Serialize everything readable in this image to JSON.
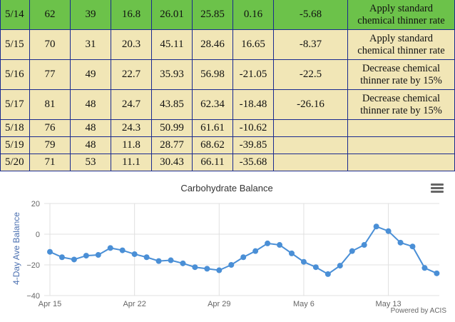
{
  "table": {
    "rows": [
      {
        "date": "5/14",
        "v1": "62",
        "v2": "39",
        "v3": "16.8",
        "v4": "26.01",
        "v5": "25.85",
        "v6": "0.16",
        "v7": "-5.68",
        "rec": [
          "Apply standard",
          "chemical thinner rate"
        ],
        "highlight": true
      },
      {
        "date": "5/15",
        "v1": "70",
        "v2": "31",
        "v3": "20.3",
        "v4": "45.11",
        "v5": "28.46",
        "v6": "16.65",
        "v7": "-8.37",
        "rec": [
          "Apply standard",
          "chemical thinner rate"
        ],
        "highlight": false
      },
      {
        "date": "5/16",
        "v1": "77",
        "v2": "49",
        "v3": "22.7",
        "v4": "35.93",
        "v5": "56.98",
        "v6": "-21.05",
        "v7": "-22.5",
        "rec": [
          "Decrease chemical",
          "thinner rate by 15%"
        ],
        "highlight": false
      },
      {
        "date": "5/17",
        "v1": "81",
        "v2": "48",
        "v3": "24.7",
        "v4": "43.85",
        "v5": "62.34",
        "v6": "-18.48",
        "v7": "-26.16",
        "rec": [
          "Decrease chemical",
          "thinner rate by 15%"
        ],
        "highlight": false
      },
      {
        "date": "5/18",
        "v1": "76",
        "v2": "48",
        "v3": "24.3",
        "v4": "50.99",
        "v5": "61.61",
        "v6": "-10.62",
        "v7": "",
        "rec": [],
        "highlight": false
      },
      {
        "date": "5/19",
        "v1": "79",
        "v2": "48",
        "v3": "11.8",
        "v4": "28.77",
        "v5": "68.62",
        "v6": "-39.85",
        "v7": "",
        "rec": [],
        "highlight": false
      },
      {
        "date": "5/20",
        "v1": "71",
        "v2": "53",
        "v3": "11.1",
        "v4": "30.43",
        "v5": "66.11",
        "v6": "-35.68",
        "v7": "",
        "rec": [],
        "highlight": false
      }
    ]
  },
  "chart_data": {
    "type": "line",
    "title": "Carbohydrate Balance",
    "ylabel": "4-Day Ave Balance",
    "xlabel": "",
    "x_ticks": [
      "Apr 15",
      "Apr 22",
      "Apr 29",
      "May 6",
      "May 13"
    ],
    "y_ticks": [
      "20",
      "0",
      "−20",
      "−40"
    ],
    "ylim": [
      -40,
      20
    ],
    "x_start": "Apr 15",
    "series": [
      {
        "color": "#4a8fd6",
        "values": [
          -11.5,
          -15,
          -16.5,
          -14,
          -13.5,
          -9,
          -10.5,
          -13,
          -15,
          -17.5,
          -17,
          -19,
          -21.5,
          -22.5,
          -23.5,
          -20,
          -15,
          -11,
          -6,
          -7,
          -12.5,
          -18,
          -21.5,
          -26,
          -20.5,
          -11,
          -7,
          5,
          2,
          -5.5,
          -8,
          -22,
          -25.5
        ]
      }
    ],
    "grid": true,
    "credit": "Powered by ACIS",
    "menu_icon": "hamburger-menu-icon"
  }
}
